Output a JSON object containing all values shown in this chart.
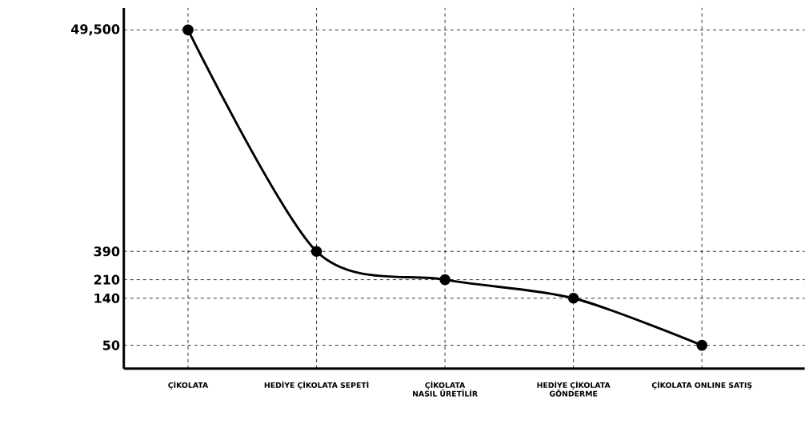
{
  "chart_data": {
    "type": "line",
    "categories": [
      "ÇİKOLATA",
      "HEDİYE ÇİKOLATA SEPETİ",
      "ÇİKOLATA NASIL ÜRETİLİR",
      "HEDİYE ÇİKOLATA GÖNDERME",
      "ÇİKOLATA ONLINE SATIŞ"
    ],
    "values": [
      49500,
      390,
      210,
      140,
      50
    ],
    "color": "#000000",
    "marker": "circle",
    "line_style": "solid",
    "log": true,
    "grid": true,
    "ylim": [
      30,
      80000
    ],
    "yticks": [
      50,
      140,
      210,
      390,
      {
        "value": 49500,
        "label": "49,500"
      }
    ]
  }
}
